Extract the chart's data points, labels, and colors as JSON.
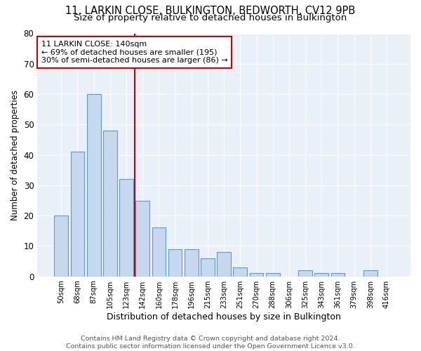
{
  "title": "11, LARKIN CLOSE, BULKINGTON, BEDWORTH, CV12 9PB",
  "subtitle": "Size of property relative to detached houses in Bulkington",
  "xlabel": "Distribution of detached houses by size in Bulkington",
  "ylabel": "Number of detached properties",
  "categories": [
    "50sqm",
    "68sqm",
    "87sqm",
    "105sqm",
    "123sqm",
    "142sqm",
    "160sqm",
    "178sqm",
    "196sqm",
    "215sqm",
    "233sqm",
    "251sqm",
    "270sqm",
    "288sqm",
    "306sqm",
    "325sqm",
    "343sqm",
    "361sqm",
    "379sqm",
    "398sqm",
    "416sqm"
  ],
  "values": [
    20,
    41,
    60,
    48,
    32,
    25,
    16,
    9,
    9,
    6,
    8,
    3,
    1,
    1,
    0,
    2,
    1,
    1,
    0,
    2,
    0
  ],
  "bar_color": "#c5d8ed",
  "bar_edge_color": "#5b9bd5",
  "vline_index": 5,
  "vline_color": "#cc0000",
  "annotation_text": "11 LARKIN CLOSE: 140sqm\n← 69% of detached houses are smaller (195)\n30% of semi-detached houses are larger (86) →",
  "annotation_box_color": "#cc0000",
  "ylim": [
    0,
    80
  ],
  "yticks": [
    0,
    10,
    20,
    30,
    40,
    50,
    60,
    70,
    80
  ],
  "plot_bg_color": "#eaf0f8",
  "footer_text": "Contains HM Land Registry data © Crown copyright and database right 2024.\nContains public sector information licensed under the Open Government Licence v3.0.",
  "title_fontsize": 10.5,
  "subtitle_fontsize": 9.5,
  "xlabel_fontsize": 9,
  "ylabel_fontsize": 8.5,
  "annotation_fontsize": 8
}
